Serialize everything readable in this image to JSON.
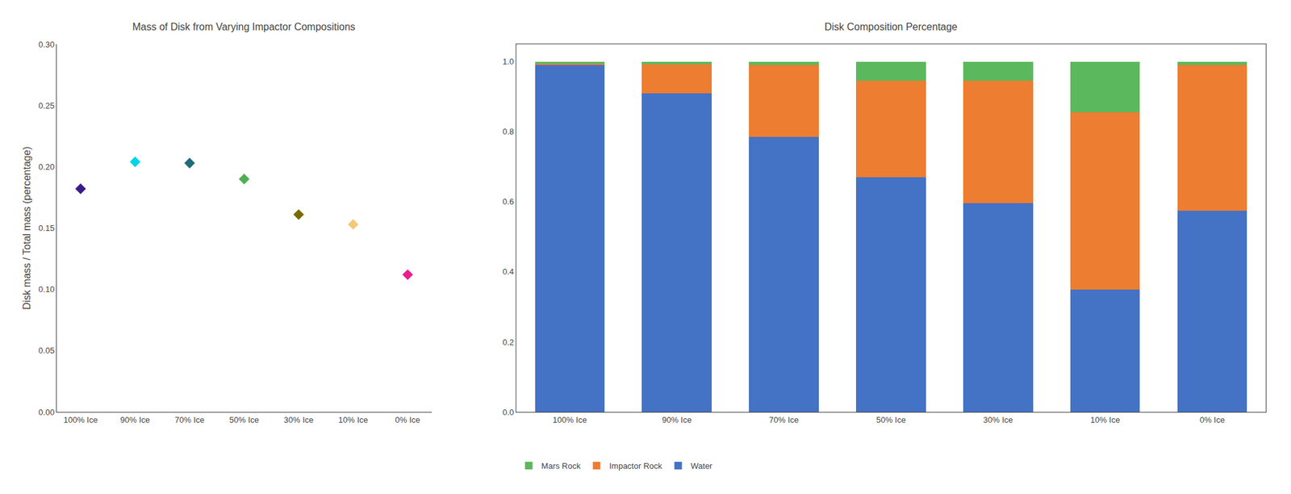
{
  "chart_data": [
    {
      "type": "scatter",
      "title": "Mass of Disk from Varying Impactor Compositions",
      "ylabel": "Disk mass / Total mass (percentage)",
      "categories": [
        "100% Ice",
        "90% Ice",
        "70% Ice",
        "50% Ice",
        "30% Ice",
        "10% Ice",
        "0% Ice"
      ],
      "values": [
        0.182,
        0.204,
        0.203,
        0.19,
        0.161,
        0.153,
        0.112
      ],
      "colors": [
        "#3b1a8a",
        "#00d4e8",
        "#1f6b7a",
        "#4caf50",
        "#7a6b00",
        "#f5c87a",
        "#e91e8c"
      ],
      "marker": "diamond",
      "ylim": [
        0.0,
        0.3
      ],
      "yticks": [
        {
          "value": 0,
          "label": "0.00"
        },
        0.05,
        {
          "value": 0.1,
          "label": "0.10"
        },
        0.15,
        {
          "value": 0.2,
          "label": "0.20"
        },
        0.25,
        {
          "value": 0.3,
          "label": "0.30"
        }
      ],
      "grid": false
    },
    {
      "type": "bar",
      "title": "Disk Composition Percentage",
      "categories": [
        "100% Ice",
        "90% Ice",
        "70% Ice",
        "50% Ice",
        "30% Ice",
        "10% Ice",
        "0% Ice"
      ],
      "stacked": true,
      "series": [
        {
          "name": "Water",
          "color": "#4472c4",
          "values": [
            0.99,
            0.91,
            0.785,
            0.67,
            0.597,
            0.35,
            0.575
          ]
        },
        {
          "name": "Impactor Rock",
          "color": "#ed7d31",
          "values": [
            0.005,
            0.082,
            0.205,
            0.275,
            0.348,
            0.505,
            0.415
          ]
        },
        {
          "name": "Mars Rock",
          "color": "#5cb85c",
          "values": [
            0.005,
            0.008,
            0.01,
            0.055,
            0.055,
            0.145,
            0.01
          ]
        }
      ],
      "ylim": [
        0.0,
        1.05
      ],
      "yticks": [
        {
          "value": 0,
          "label": "0.0"
        },
        0.2,
        0.4,
        0.6,
        0.8,
        {
          "value": 1,
          "label": "1.0"
        }
      ],
      "legend": "lower left",
      "grid": false
    }
  ]
}
